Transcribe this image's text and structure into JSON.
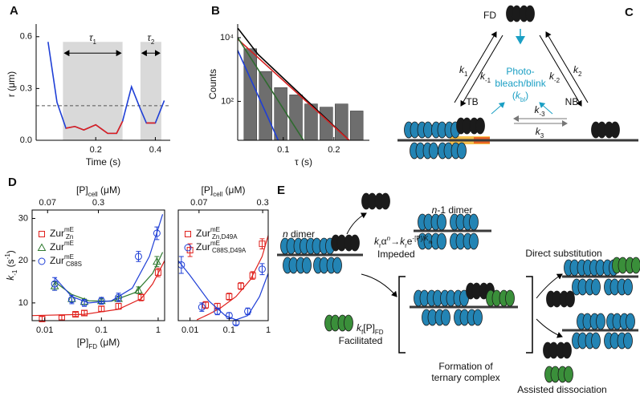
{
  "chart_data": [
    {
      "type": "line",
      "label": "A",
      "xlabel": "Time (s)",
      "ylabel": "r (μm)",
      "xlim": [
        0,
        0.45
      ],
      "ylim": [
        0,
        0.65
      ],
      "xticks": [
        0.2,
        0.4
      ],
      "yticks": [
        {
          "value": 0,
          "label": "0.0"
        },
        0.3,
        0.6
      ],
      "threshold": 0.2,
      "regions": [
        {
          "label": "τ",
          "sub": "1",
          "x": [
            0.09,
            0.29
          ],
          "top": 0.57
        },
        {
          "label": "τ",
          "sub": "2",
          "x": [
            0.35,
            0.42
          ],
          "top": 0.57
        }
      ],
      "x": [
        0.04,
        0.07,
        0.1,
        0.13,
        0.16,
        0.2,
        0.24,
        0.27,
        0.29,
        0.32,
        0.35,
        0.37,
        0.4,
        0.43
      ],
      "series": [
        {
          "color": "#1f3fd6",
          "values": [
            0.57,
            0.22,
            0.07,
            0.08,
            0.06,
            0.09,
            0.04,
            0.04,
            0.11,
            0.31,
            0.18,
            0.1,
            0.1,
            0.23
          ]
        },
        {
          "color": "#e0201c",
          "values": [
            null,
            null,
            0.07,
            0.08,
            0.06,
            0.09,
            0.04,
            0.04,
            0.11,
            null,
            null,
            0.1,
            0.1,
            null
          ]
        }
      ]
    },
    {
      "type": "histogram",
      "label": "B",
      "xlabel": "τ (s)",
      "ylabel": "Counts",
      "log_y": true,
      "xlim": [
        0.01,
        0.27
      ],
      "ylim": [
        6,
        20000
      ],
      "xticks": [
        0.1,
        0.2
      ],
      "yticks": [
        {
          "value": 100,
          "label": "10²"
        },
        {
          "value": 10000,
          "label": "10⁴"
        }
      ],
      "color": "#6e6e6e",
      "bins": [
        0.02,
        0.05,
        0.08,
        0.11,
        0.14,
        0.17,
        0.2,
        0.23,
        0.26
      ],
      "counts": [
        4500,
        870,
        270,
        160,
        83,
        66,
        83,
        50
      ],
      "lines": [
        {
          "color": "#000000",
          "x": [
            0.01,
            0.05,
            0.23
          ],
          "values": [
            20000,
            3000,
            6
          ]
        },
        {
          "color": "#d62020",
          "x": [
            0.01,
            0.23
          ],
          "values": [
            9000,
            6
          ]
        },
        {
          "color": "#2f6b2f",
          "x": [
            0.01,
            0.14
          ],
          "values": [
            10000,
            6
          ]
        },
        {
          "color": "#1f3fd6",
          "x": [
            0.01,
            0.09
          ],
          "values": [
            4000,
            6
          ]
        }
      ]
    },
    {
      "type": "scatter",
      "label": "D",
      "log_x": true,
      "box": true,
      "xlim": [
        0.006,
        1.3
      ],
      "ylim": [
        5.8,
        32
      ],
      "xticks": [
        0.01,
        0.1,
        1
      ],
      "yticks": [
        10,
        20,
        30
      ],
      "x2lim": [
        0,
        0.6
      ],
      "x2ticks": [
        0.07,
        0.3
      ],
      "xlabel": [
        "[P]",
        "FD",
        " (μM)"
      ],
      "x2label": [
        "[P]",
        "cell",
        " (μM)"
      ],
      "ylabel": [
        "k",
        "-1",
        " (s",
        "-1",
        ")"
      ],
      "series": [
        {
          "name": "Zur",
          "sup": "mE",
          "sub": "Zn",
          "color": "#e0201c",
          "marker": "square",
          "x": [
            0.009,
            0.02,
            0.035,
            0.05,
            0.1,
            0.2,
            0.5,
            1.0
          ],
          "values": [
            6.2,
            6.5,
            7.3,
            7.6,
            8.6,
            9.2,
            11.3,
            17.2
          ],
          "errors": [
            0.6,
            0.5,
            0.5,
            0.6,
            0.6,
            0.7,
            0.8,
            1
          ],
          "fit_x": [
            0.006,
            0.05,
            0.2,
            0.5,
            0.8,
            1.3
          ],
          "fit_y": [
            7,
            7.3,
            8.5,
            11,
            14.5,
            20
          ]
        },
        {
          "name": "Zur",
          "sup": "mE",
          "color": "#2f7a2f",
          "marker": "triangle",
          "x": [
            0.015,
            0.03,
            0.05,
            0.1,
            0.2,
            0.45,
            0.95
          ],
          "values": [
            14,
            11,
            10.3,
            10.5,
            11,
            13,
            19.8
          ],
          "errors": [
            1,
            0.8,
            0.6,
            0.6,
            0.6,
            0.8,
            1.2
          ],
          "fit_x": [
            0.015,
            0.03,
            0.06,
            0.15,
            0.4,
            0.8,
            1.2
          ],
          "fit_y": [
            15,
            12,
            10.5,
            10.4,
            12.5,
            17,
            22
          ]
        },
        {
          "name": "Zur",
          "sup": "mE",
          "sub": "C88S",
          "color": "#1f3fd6",
          "marker": "circle",
          "x": [
            0.015,
            0.03,
            0.05,
            0.1,
            0.2,
            0.45,
            0.95
          ],
          "values": [
            14.5,
            10.8,
            10,
            10.5,
            11.3,
            21,
            26.5
          ],
          "errors": [
            1.5,
            1,
            0.8,
            0.8,
            1,
            1.2,
            1.5
          ],
          "fit_x": [
            0.015,
            0.03,
            0.06,
            0.15,
            0.35,
            0.7,
            1.2
          ],
          "fit_y": [
            16,
            11.5,
            10,
            10.5,
            13.5,
            21,
            31
          ]
        }
      ]
    },
    {
      "type": "scatter",
      "log_x": true,
      "box": true,
      "xlim": [
        0.005,
        1
      ],
      "ylim": [
        5.8,
        32
      ],
      "xticks": [
        0.01,
        0.1,
        1
      ],
      "x2lim": [
        -0.005,
        0.32
      ],
      "x2ticks": [
        0.07,
        0.3
      ],
      "x2label": [
        "[P]",
        "cell",
        " (μM)"
      ],
      "series": [
        {
          "name": "Zur",
          "sup": "mE",
          "sub": "Zn,D49A",
          "color": "#e0201c",
          "marker": "square",
          "x": [
            0.01,
            0.025,
            0.05,
            0.1,
            0.2,
            0.4,
            0.7
          ],
          "values": [
            22.5,
            9.5,
            9.2,
            11.5,
            14,
            16.5,
            24
          ],
          "errors": [
            1.5,
            0.8,
            0.7,
            0.8,
            0.8,
            0.9,
            1.2
          ],
          "fit_x": [
            0.015,
            0.03,
            0.06,
            0.15,
            0.35,
            0.7,
            1
          ],
          "fit_y": [
            6,
            7.3,
            8.8,
            11.5,
            15.5,
            21,
            26
          ]
        },
        {
          "name": "Zur",
          "sup": "mE",
          "sub": "C88S,D49A",
          "color": "#1f3fd6",
          "marker": "circle",
          "x": [
            0.006,
            0.02,
            0.05,
            0.1,
            0.15,
            0.3,
            0.7
          ],
          "values": [
            19,
            9,
            8,
            7,
            5.3,
            8,
            18
          ],
          "errors": [
            2,
            1,
            0.8,
            0.7,
            0.5,
            0.8,
            1.3
          ],
          "fit_x": [
            0.005,
            0.01,
            0.03,
            0.08,
            0.15,
            0.3,
            0.6,
            1
          ],
          "fit_y": [
            20,
            16.5,
            10.5,
            7,
            6,
            7,
            11.5,
            17
          ]
        }
      ]
    }
  ],
  "diagram_c": {
    "label": "C",
    "fd": "FD",
    "tb": "TB",
    "nb": "NB",
    "k1": [
      "k",
      "1"
    ],
    "k_1": [
      "k",
      "-1"
    ],
    "k_2": [
      "k",
      "-2"
    ],
    "k2": [
      "k",
      "2"
    ],
    "k_3": [
      "k",
      "-3"
    ],
    "k3": [
      "k",
      "3"
    ],
    "photobleach": [
      "Photo-",
      "bleach/blink",
      "(",
      "k",
      "bl",
      ")"
    ]
  },
  "diagram_e": {
    "label": "E",
    "n_dimer": [
      "n",
      " dimer"
    ],
    "n1_dimer": [
      "n",
      "-1 dimer"
    ],
    "impeded_rate": [
      "k",
      "r",
      "α",
      "n",
      "→",
      "k",
      "r",
      "e",
      "-[P]/K",
      "m"
    ],
    "impeded": "Impeded",
    "facilitated_rate": [
      "k",
      "f",
      "[P]",
      "FD"
    ],
    "facilitated": "Facilitated",
    "ternary": [
      "Formation of",
      "ternary complex"
    ],
    "direct": "Direct substitution",
    "assisted": "Assisted dissociation"
  }
}
